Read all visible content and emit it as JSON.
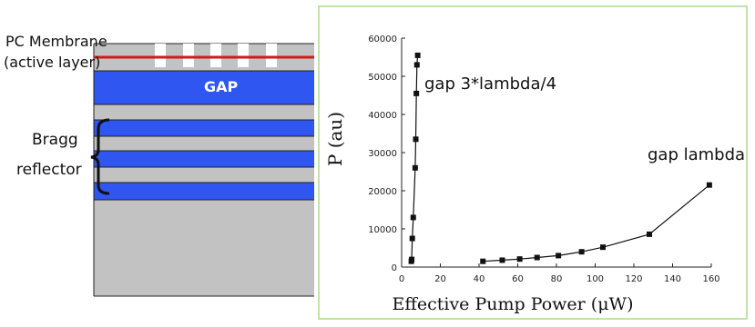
{
  "structure": {
    "labels": {
      "membrane_line1": "PC Membrane",
      "membrane_line2": "(active layer)",
      "gap": "GAP",
      "bragg_line1": "Bragg",
      "bragg_line2": "reflector"
    },
    "colors": {
      "gray_layer": "#c2c2c2",
      "blue_layer": "#2f56f0",
      "active_line": "#d11a1a",
      "hole": "#ffffff",
      "border": "#222222"
    }
  },
  "chart_data": {
    "type": "line",
    "xlabel": "Effective Pump Power (μW)",
    "ylabel": "P (au)",
    "xlim": [
      0,
      160
    ],
    "ylim": [
      0,
      60000
    ],
    "x_ticks": [
      0,
      20,
      40,
      60,
      80,
      100,
      120,
      140,
      160
    ],
    "y_ticks": [
      0,
      10000,
      20000,
      30000,
      40000,
      50000,
      60000
    ],
    "grid": false,
    "series": [
      {
        "name": "gap 3*lambda/4",
        "x": [
          5,
          5.2,
          5.5,
          6,
          7,
          7.3,
          7.6,
          7.9,
          8.3
        ],
        "y": [
          1500,
          2000,
          7500,
          13000,
          26000,
          33500,
          45500,
          53000,
          55500
        ]
      },
      {
        "name": "gap lambda",
        "x": [
          42,
          52,
          61,
          70,
          81,
          93,
          104,
          128,
          159
        ],
        "y": [
          1500,
          1800,
          2100,
          2500,
          3000,
          4000,
          5200,
          8600,
          21500
        ]
      }
    ],
    "colors": {
      "series": "#111111",
      "axis": "#222222"
    }
  }
}
